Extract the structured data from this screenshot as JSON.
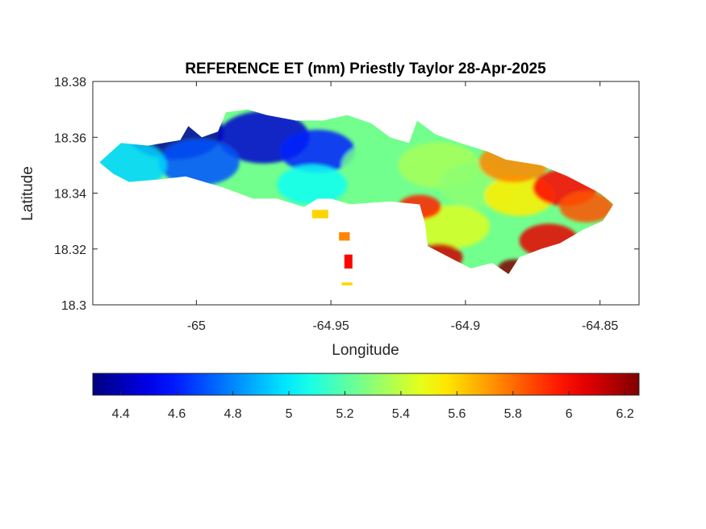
{
  "chart_data": {
    "type": "heatmap",
    "title": "REFERENCE ET (mm) Priestly Taylor 28-Apr-2025",
    "xlabel": "Longitude",
    "ylabel": "Latitude",
    "xlim": [
      -65.0385,
      -64.8355
    ],
    "ylim": [
      18.3,
      18.38
    ],
    "xticks": [
      -65,
      -64.95,
      -64.9,
      -64.85
    ],
    "xtick_labels": [
      "-65",
      "-64.95",
      "-64.9",
      "-64.85"
    ],
    "yticks": [
      18.3,
      18.32,
      18.34,
      18.36,
      18.38
    ],
    "ytick_labels": [
      "18.3",
      "18.32",
      "18.34",
      "18.36",
      "18.38"
    ],
    "grid": false,
    "colormap": "jet",
    "colorbar": {
      "orientation": "horizontal",
      "location": "below",
      "clim": [
        4.3,
        6.25
      ],
      "ticks": [
        4.4,
        4.6,
        4.8,
        5,
        5.2,
        5.4,
        5.6,
        5.8,
        6,
        6.2
      ],
      "tick_labels": [
        "4.4",
        "4.6",
        "4.8",
        "5",
        "5.2",
        "5.4",
        "5.6",
        "5.8",
        "6",
        "6.2"
      ]
    },
    "field_extremes": {
      "min": 4.3,
      "max": 6.25
    },
    "island_outline": [
      [
        -65.036,
        18.351
      ],
      [
        -65.028,
        18.358
      ],
      [
        -65.018,
        18.357
      ],
      [
        -65.006,
        18.359
      ],
      [
        -65.003,
        18.364
      ],
      [
        -64.998,
        18.36
      ],
      [
        -64.992,
        18.362
      ],
      [
        -64.989,
        18.369
      ],
      [
        -64.981,
        18.37
      ],
      [
        -64.974,
        18.368
      ],
      [
        -64.963,
        18.366
      ],
      [
        -64.953,
        18.366
      ],
      [
        -64.944,
        18.368
      ],
      [
        -64.935,
        18.365
      ],
      [
        -64.928,
        18.36
      ],
      [
        -64.921,
        18.358
      ],
      [
        -64.918,
        18.366
      ],
      [
        -64.911,
        18.361
      ],
      [
        -64.902,
        18.358
      ],
      [
        -64.892,
        18.355
      ],
      [
        -64.885,
        18.352
      ],
      [
        -64.872,
        18.35
      ],
      [
        -64.862,
        18.346
      ],
      [
        -64.85,
        18.34
      ],
      [
        -64.845,
        18.336
      ],
      [
        -64.849,
        18.33
      ],
      [
        -64.856,
        18.327
      ],
      [
        -64.865,
        18.322
      ],
      [
        -64.872,
        18.32
      ],
      [
        -64.88,
        18.317
      ],
      [
        -64.884,
        18.311
      ],
      [
        -64.89,
        18.315
      ],
      [
        -64.898,
        18.313
      ],
      [
        -64.906,
        18.317
      ],
      [
        -64.914,
        18.321
      ],
      [
        -64.915,
        18.329
      ],
      [
        -64.917,
        18.336
      ],
      [
        -64.928,
        18.337
      ],
      [
        -64.943,
        18.336
      ],
      [
        -64.95,
        18.338
      ],
      [
        -64.955,
        18.338
      ],
      [
        -64.96,
        18.335
      ],
      [
        -64.97,
        18.338
      ],
      [
        -64.979,
        18.338
      ],
      [
        -64.99,
        18.342
      ],
      [
        -65.004,
        18.346
      ],
      [
        -65.013,
        18.345
      ],
      [
        -65.025,
        18.344
      ],
      [
        -65.031,
        18.347
      ]
    ],
    "islets": [
      [
        [
          -64.957,
          18.334
        ],
        [
          -64.951,
          18.334
        ],
        [
          -64.951,
          18.331
        ],
        [
          -64.957,
          18.331
        ]
      ],
      [
        [
          -64.947,
          18.326
        ],
        [
          -64.943,
          18.326
        ],
        [
          -64.943,
          18.323
        ],
        [
          -64.947,
          18.323
        ]
      ],
      [
        [
          -64.945,
          18.318
        ],
        [
          -64.942,
          18.318
        ],
        [
          -64.942,
          18.313
        ],
        [
          -64.945,
          18.313
        ]
      ],
      [
        [
          -64.946,
          18.308
        ],
        [
          -64.942,
          18.308
        ],
        [
          -64.942,
          18.307
        ],
        [
          -64.946,
          18.307
        ]
      ]
    ],
    "hotspots": [
      {
        "lon": -65.008,
        "lat": 18.362,
        "value": 4.35,
        "radius": 0.018
      },
      {
        "lon": -64.975,
        "lat": 18.36,
        "value": 4.45,
        "radius": 0.017
      },
      {
        "lon": -64.955,
        "lat": 18.355,
        "value": 4.6,
        "radius": 0.014
      },
      {
        "lon": -64.999,
        "lat": 18.351,
        "value": 4.7,
        "radius": 0.015
      },
      {
        "lon": -65.027,
        "lat": 18.35,
        "value": 4.95,
        "radius": 0.016
      },
      {
        "lon": -64.957,
        "lat": 18.343,
        "value": 5.05,
        "radius": 0.013
      },
      {
        "lon": -64.93,
        "lat": 18.35,
        "value": 5.25,
        "radius": 0.016
      },
      {
        "lon": -64.91,
        "lat": 18.35,
        "value": 5.35,
        "radius": 0.015
      },
      {
        "lon": -64.895,
        "lat": 18.343,
        "value": 5.3,
        "radius": 0.015
      },
      {
        "lon": -64.905,
        "lat": 18.328,
        "value": 5.45,
        "radius": 0.014
      },
      {
        "lon": -64.917,
        "lat": 18.335,
        "value": 5.95,
        "radius": 0.008
      },
      {
        "lon": -64.88,
        "lat": 18.339,
        "value": 5.55,
        "radius": 0.013
      },
      {
        "lon": -64.882,
        "lat": 18.351,
        "value": 5.75,
        "radius": 0.013
      },
      {
        "lon": -64.863,
        "lat": 18.342,
        "value": 6.0,
        "radius": 0.012
      },
      {
        "lon": -64.855,
        "lat": 18.335,
        "value": 5.85,
        "radius": 0.01
      },
      {
        "lon": -64.869,
        "lat": 18.323,
        "value": 6.05,
        "radius": 0.011
      },
      {
        "lon": -64.91,
        "lat": 18.317,
        "value": 6.1,
        "radius": 0.009
      },
      {
        "lon": -64.882,
        "lat": 18.313,
        "value": 6.25,
        "radius": 0.006
      },
      {
        "lon": -64.945,
        "lat": 18.316,
        "value": 6.0,
        "radius": 0.004
      },
      {
        "lon": -64.947,
        "lat": 18.332,
        "value": 5.6,
        "radius": 0.005
      },
      {
        "lon": -64.945,
        "lat": 18.324,
        "value": 5.75,
        "radius": 0.004
      }
    ]
  }
}
